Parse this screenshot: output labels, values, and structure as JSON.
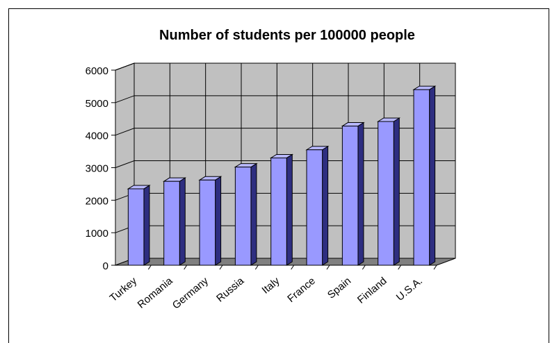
{
  "chart_data": {
    "type": "bar",
    "title": "Number of students per 100000 people",
    "xlabel": "",
    "ylabel": "",
    "categories": [
      "Turkey",
      "Romania",
      "Germany",
      "Russia",
      "Italy",
      "France",
      "Spain",
      "Finland",
      "U.S.A."
    ],
    "values": [
      2350,
      2580,
      2620,
      3020,
      3300,
      3550,
      4280,
      4420,
      5400
    ],
    "ylim": [
      0,
      6000
    ],
    "yticks": [
      "0",
      "1000",
      "2000",
      "3000",
      "4000",
      "5000",
      "6000"
    ],
    "grid": true,
    "legend": "none",
    "colors": {
      "bar_front": "#9999ff",
      "bar_side": "#2e2e80",
      "bar_top": "#b8b8ff",
      "wall": "#c0c0c0",
      "floor": "#808080",
      "grid": "#000000"
    }
  }
}
